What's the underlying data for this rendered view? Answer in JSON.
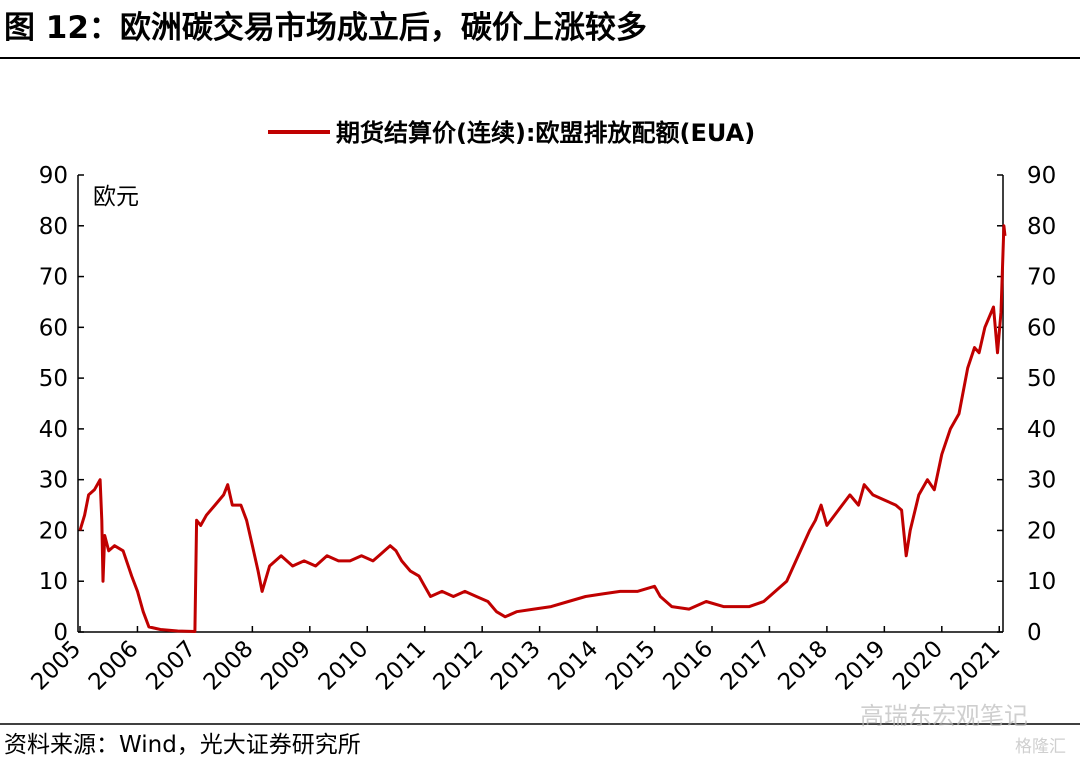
{
  "chart_data": {
    "type": "line",
    "title": "图 12：欧洲碳交易市场成立后，碳价上涨较多",
    "ylabel": "欧元",
    "source": "资料来源：Wind，光大证券研究所",
    "watermarks": [
      "高瑞东宏观笔记",
      "格隆汇"
    ],
    "x": [
      2005.0,
      2005.08,
      2005.15,
      2005.25,
      2005.35,
      2005.38,
      2005.4,
      2005.43,
      2005.5,
      2005.6,
      2005.75,
      2005.9,
      2006.0,
      2006.1,
      2006.2,
      2006.4,
      2006.7,
      2007.0,
      2007.03,
      2007.1,
      2007.2,
      2007.35,
      2007.5,
      2007.57,
      2007.65,
      2007.8,
      2007.9,
      2008.0,
      2008.1,
      2008.17,
      2008.3,
      2008.5,
      2008.7,
      2008.9,
      2009.1,
      2009.3,
      2009.5,
      2009.7,
      2009.9,
      2010.1,
      2010.3,
      2010.4,
      2010.5,
      2010.6,
      2010.75,
      2010.9,
      2011.0,
      2011.1,
      2011.3,
      2011.5,
      2011.7,
      2011.9,
      2012.1,
      2012.25,
      2012.4,
      2012.6,
      2012.9,
      2013.2,
      2013.5,
      2013.8,
      2014.1,
      2014.4,
      2014.7,
      2015.0,
      2015.1,
      2015.3,
      2015.6,
      2015.9,
      2016.2,
      2016.5,
      2016.65,
      2016.9,
      2017.1,
      2017.3,
      2017.5,
      2017.7,
      2017.8,
      2017.9,
      2018.0,
      2018.2,
      2018.4,
      2018.55,
      2018.65,
      2018.8,
      2019.0,
      2019.2,
      2019.3,
      2019.38,
      2019.45,
      2019.6,
      2019.75,
      2019.87,
      2020.0,
      2020.15,
      2020.3,
      2020.45,
      2020.57,
      2020.65,
      2020.75,
      2020.9,
      2020.97,
      2021.03,
      2021.08,
      2021.1
    ],
    "series": [
      {
        "name": "期货结算价(连续):欧盟排放配额(EUA)",
        "color": "#c00000",
        "values": [
          20,
          23,
          27,
          28,
          30,
          22,
          10,
          19,
          16,
          17,
          16,
          11,
          8,
          4,
          1,
          0.5,
          0.2,
          0.1,
          22,
          21,
          23,
          25,
          27,
          29,
          25,
          25,
          22,
          17,
          12,
          8,
          13,
          15,
          13,
          14,
          13,
          15,
          14,
          14,
          15,
          14,
          16,
          17,
          16,
          14,
          12,
          11,
          9,
          7,
          8,
          7,
          8,
          7,
          6,
          4,
          3,
          4,
          4.5,
          5,
          6,
          7,
          7.5,
          8,
          8,
          9,
          7,
          5,
          4.5,
          6,
          5,
          5,
          5,
          6,
          8,
          10,
          15,
          20,
          22,
          25,
          21,
          24,
          27,
          25,
          29,
          27,
          26,
          25,
          24,
          15,
          20,
          27,
          30,
          28,
          35,
          40,
          43,
          52,
          56,
          55,
          60,
          64,
          55,
          63,
          80,
          78
        ]
      }
    ],
    "xlim": [
      2005,
      2021.1
    ],
    "xticks": [
      2005,
      2006,
      2007,
      2008,
      2009,
      2010,
      2011,
      2012,
      2013,
      2014,
      2015,
      2016,
      2017,
      2018,
      2019,
      2020,
      2021
    ],
    "ylim": [
      0,
      90
    ],
    "yticks": [
      0,
      10,
      20,
      30,
      40,
      50,
      60,
      70,
      80,
      90
    ],
    "y2lim": [
      0,
      90
    ],
    "y2ticks": [
      0,
      10,
      20,
      30,
      40,
      50,
      60,
      70,
      80,
      90
    ],
    "legend": "top"
  }
}
